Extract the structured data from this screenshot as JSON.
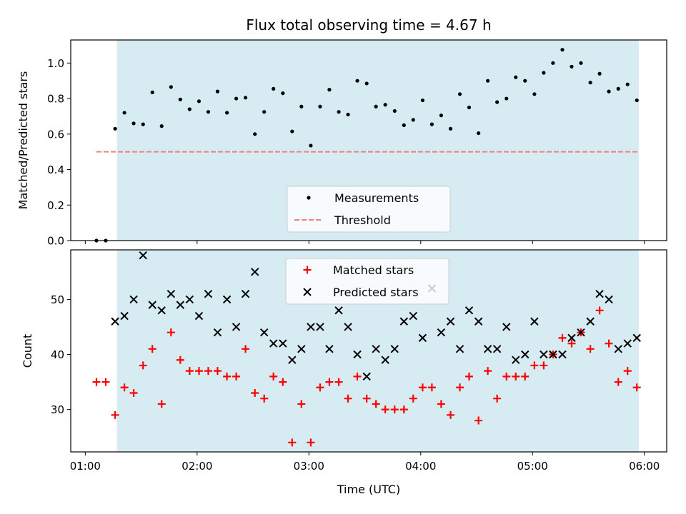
{
  "figure_title": "Flux total observing time = 4.67 h",
  "colors": {
    "shade": "#add8e6",
    "threshold": "#f08080",
    "matched": "#ff0000",
    "predicted": "#000000",
    "measurement": "#000000"
  },
  "chart_data": [
    {
      "type": "scatter",
      "ylabel": "Matched/Predicted stars",
      "xlabel": "",
      "x_unit": "hours UTC",
      "xlim": [
        0.87,
        6.2
      ],
      "ylim": [
        0.0,
        1.13
      ],
      "yticks": [
        "0.0",
        "0.2",
        "0.4",
        "0.6",
        "0.8",
        "1.0"
      ],
      "ytick_values": [
        0.0,
        0.2,
        0.4,
        0.6,
        0.8,
        1.0
      ],
      "xticks_values": [
        1,
        2,
        3,
        4,
        5,
        6
      ],
      "xticklabels_visible": false,
      "shaded_span": [
        1.283,
        5.95
      ],
      "threshold": {
        "name": "Threshold",
        "y": 0.5,
        "x_range": [
          1.1,
          5.95
        ]
      },
      "series": [
        {
          "name": "Measurements",
          "marker": "dot",
          "x": [
            1.1,
            1.183,
            1.267,
            1.35,
            1.433,
            1.517,
            1.6,
            1.683,
            1.767,
            1.85,
            1.933,
            2.017,
            2.1,
            2.183,
            2.267,
            2.35,
            2.433,
            2.517,
            2.6,
            2.683,
            2.767,
            2.85,
            2.933,
            3.017,
            3.1,
            3.183,
            3.267,
            3.35,
            3.433,
            3.517,
            3.6,
            3.683,
            3.767,
            3.85,
            3.933,
            4.017,
            4.1,
            4.183,
            4.267,
            4.35,
            4.433,
            4.517,
            4.6,
            4.683,
            4.767,
            4.85,
            4.933,
            5.017,
            5.1,
            5.183,
            5.267,
            5.35,
            5.433,
            5.517,
            5.6,
            5.683,
            5.767,
            5.85,
            5.933
          ],
          "y": [
            0.0,
            0.0,
            0.63,
            0.72,
            0.66,
            0.655,
            0.835,
            0.645,
            0.865,
            0.795,
            0.74,
            0.785,
            0.725,
            0.84,
            0.72,
            0.8,
            0.805,
            0.6,
            0.725,
            0.855,
            0.83,
            0.615,
            0.755,
            0.535,
            0.755,
            0.85,
            0.725,
            0.71,
            0.9,
            0.885,
            0.755,
            0.765,
            0.73,
            0.65,
            0.68,
            0.79,
            0.655,
            0.705,
            0.63,
            0.825,
            0.75,
            0.605,
            0.9,
            0.78,
            0.8,
            0.92,
            0.9,
            0.825,
            0.945,
            1.0,
            1.075,
            0.98,
            1.0,
            0.89,
            0.94,
            0.84,
            0.855,
            0.88,
            0.79
          ]
        }
      ],
      "legend": {
        "placement": "lower center",
        "entries": [
          "Measurements",
          "Threshold"
        ]
      }
    },
    {
      "type": "scatter",
      "ylabel": "Count",
      "xlabel": "Time (UTC)",
      "x_unit": "hours UTC",
      "xlim": [
        0.87,
        6.2
      ],
      "ylim": [
        22.3,
        59.0
      ],
      "yticks": [
        "30",
        "40",
        "50"
      ],
      "ytick_values": [
        30,
        40,
        50
      ],
      "xticks": [
        "01:00",
        "02:00",
        "03:00",
        "04:00",
        "05:00",
        "06:00"
      ],
      "xticks_values": [
        1,
        2,
        3,
        4,
        5,
        6
      ],
      "shaded_span": [
        1.283,
        5.95
      ],
      "series": [
        {
          "name": "Matched stars",
          "marker": "plus",
          "x": [
            1.1,
            1.183,
            1.267,
            1.35,
            1.433,
            1.517,
            1.6,
            1.683,
            1.767,
            1.85,
            1.933,
            2.017,
            2.1,
            2.183,
            2.267,
            2.35,
            2.433,
            2.517,
            2.6,
            2.683,
            2.767,
            2.85,
            2.933,
            3.017,
            3.1,
            3.183,
            3.267,
            3.35,
            3.433,
            3.517,
            3.6,
            3.683,
            3.767,
            3.85,
            3.933,
            4.017,
            4.1,
            4.183,
            4.267,
            4.35,
            4.433,
            4.517,
            4.6,
            4.683,
            4.767,
            4.85,
            4.933,
            5.017,
            5.1,
            5.183,
            5.267,
            5.35,
            5.433,
            5.517,
            5.6,
            5.683,
            5.767,
            5.85,
            5.933
          ],
          "y": [
            35,
            35,
            29,
            34,
            33,
            38,
            41,
            31,
            44,
            39,
            37,
            37,
            37,
            37,
            36,
            36,
            41,
            33,
            32,
            36,
            35,
            24,
            31,
            24,
            34,
            35,
            35,
            32,
            36,
            32,
            31,
            30,
            30,
            30,
            32,
            34,
            34,
            31,
            29,
            34,
            36,
            28,
            37,
            32,
            36,
            36,
            36,
            38,
            38,
            40,
            43,
            42,
            44,
            41,
            48,
            42,
            35,
            37,
            34
          ]
        },
        {
          "name": "Predicted stars",
          "marker": "x",
          "x": [
            1.267,
            1.35,
            1.433,
            1.517,
            1.6,
            1.683,
            1.767,
            1.85,
            1.933,
            2.017,
            2.1,
            2.183,
            2.267,
            2.35,
            2.433,
            2.517,
            2.6,
            2.683,
            2.767,
            2.85,
            2.933,
            3.017,
            3.1,
            3.183,
            3.267,
            3.35,
            3.433,
            3.517,
            3.6,
            3.683,
            3.767,
            3.85,
            3.933,
            4.017,
            4.1,
            4.183,
            4.267,
            4.35,
            4.433,
            4.517,
            4.6,
            4.683,
            4.767,
            4.85,
            4.933,
            5.017,
            5.1,
            5.183,
            5.267,
            5.35,
            5.433,
            5.517,
            5.6,
            5.683,
            5.767,
            5.85,
            5.933
          ],
          "y": [
            46,
            47,
            50,
            58,
            49,
            48,
            51,
            49,
            50,
            47,
            51,
            44,
            50,
            45,
            51,
            55,
            44,
            42,
            42,
            39,
            41,
            45,
            45,
            41,
            48,
            45,
            40,
            36,
            41,
            39,
            41,
            46,
            47,
            43,
            52,
            44,
            46,
            41,
            48,
            46,
            41,
            41,
            45,
            39,
            40,
            46,
            40,
            40,
            40,
            43,
            44,
            46,
            51,
            50,
            41,
            42,
            43
          ]
        }
      ],
      "legend": {
        "placement": "upper center",
        "entries": [
          "Matched stars",
          "Predicted stars"
        ]
      }
    }
  ]
}
